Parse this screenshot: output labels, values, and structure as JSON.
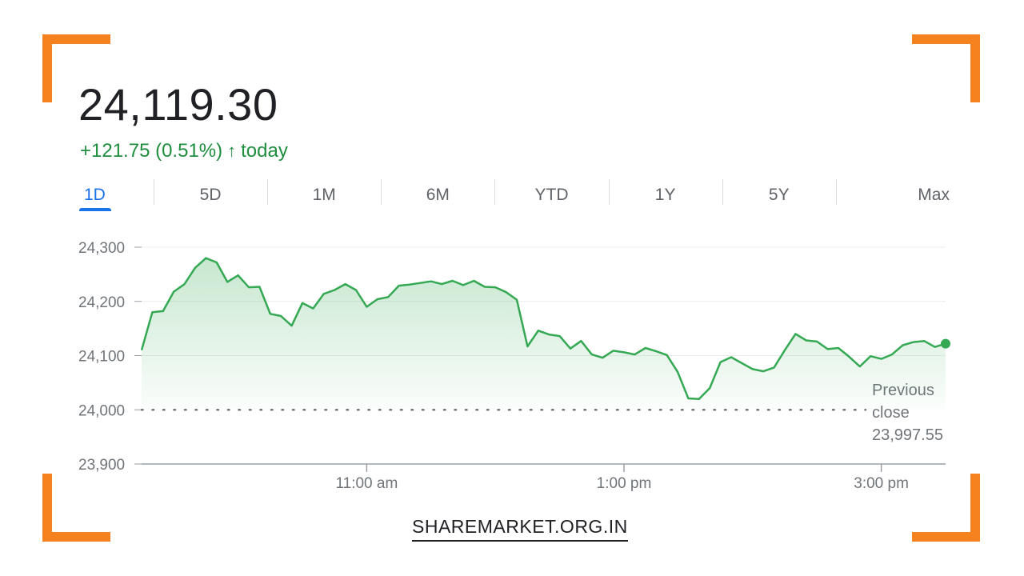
{
  "header": {
    "price": "24,119.30",
    "change_text": "+121.75 (0.51%)",
    "change_icon": "arrow-up-icon",
    "change_suffix": "today",
    "up_color": "#1e8e3e"
  },
  "tabs": [
    {
      "label": "1D",
      "active": true
    },
    {
      "label": "5D",
      "active": false
    },
    {
      "label": "1M",
      "active": false
    },
    {
      "label": "6M",
      "active": false
    },
    {
      "label": "YTD",
      "active": false
    },
    {
      "label": "1Y",
      "active": false
    },
    {
      "label": "5Y",
      "active": false
    },
    {
      "label": "Max",
      "active": false
    }
  ],
  "chart_data": {
    "type": "area",
    "series": [
      {
        "x": [
          "9:15",
          "9:20",
          "9:25",
          "9:30",
          "9:35",
          "9:40",
          "9:45",
          "9:50",
          "9:55",
          "10:00",
          "10:05",
          "10:10",
          "10:15",
          "10:20",
          "10:25",
          "10:30",
          "10:35",
          "10:40",
          "10:45",
          "10:50",
          "10:55",
          "11:00",
          "11:05",
          "11:10",
          "11:15",
          "11:20",
          "11:25",
          "11:30",
          "11:35",
          "11:40",
          "11:45",
          "11:50",
          "11:55",
          "12:00",
          "12:05",
          "12:10",
          "12:15",
          "12:20",
          "12:25",
          "12:30",
          "12:35",
          "12:40",
          "12:45",
          "12:50",
          "12:55",
          "13:00",
          "13:05",
          "13:10",
          "13:15",
          "13:20",
          "13:25",
          "13:30",
          "13:35",
          "13:40",
          "13:45",
          "13:50",
          "13:55",
          "14:00",
          "14:05",
          "14:10",
          "14:15",
          "14:20",
          "14:25",
          "14:30",
          "14:35",
          "14:40",
          "14:45",
          "14:50",
          "14:55",
          "15:00",
          "15:05",
          "15:10",
          "15:15",
          "15:20",
          "15:25",
          "15:30"
        ],
        "values": [
          24110,
          24180,
          24182,
          24218,
          24232,
          24262,
          24280,
          24272,
          24236,
          24248,
          24226,
          24227,
          24177,
          24173,
          24155,
          24197,
          24187,
          24214,
          24221,
          24232,
          24221,
          24190,
          24204,
          24208,
          24229,
          24231,
          24234,
          24237,
          24232,
          24238,
          24230,
          24238,
          24227,
          24226,
          24217,
          24203,
          24117,
          24146,
          24139,
          24136,
          24113,
          24127,
          24102,
          24096,
          24109,
          24106,
          24102,
          24114,
          24108,
          24101,
          24070,
          24021,
          24020,
          24040,
          24088,
          24097,
          24086,
          24075,
          24071,
          24078,
          24110,
          24140,
          24128,
          24126,
          24112,
          24114,
          24098,
          24080,
          24099,
          24094,
          24102,
          24119,
          24125,
          24127,
          24116,
          24122
        ]
      }
    ],
    "x_ticks": [
      "11:00 am",
      "1:00 pm",
      "3:00 pm"
    ],
    "y_ticks": [
      "24,300",
      "24,200",
      "24,100",
      "24,000",
      "23,900"
    ],
    "ylim": [
      23900,
      24300
    ],
    "previous_close": 23997.55,
    "previous_close_label": [
      "Previous",
      "close",
      "23,997.55"
    ],
    "line_color": "#34a853",
    "grid": true
  },
  "footer": {
    "watermark": "SHAREMARKET.ORG.IN"
  }
}
